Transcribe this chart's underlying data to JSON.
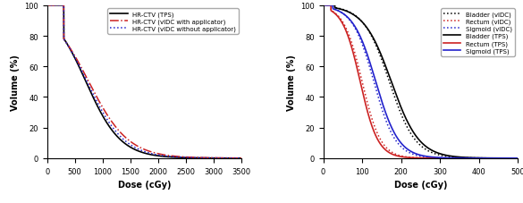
{
  "left": {
    "xlabel": "Dose (cGy)",
    "ylabel": "Volume (%)",
    "xlim": [
      0,
      3500
    ],
    "ylim": [
      0,
      100
    ],
    "xticks": [
      0,
      500,
      1000,
      1500,
      2000,
      2500,
      3000,
      3500
    ],
    "yticks": [
      0,
      20,
      40,
      60,
      80,
      100
    ],
    "curves": [
      {
        "label": "HR-CTV (TPS)",
        "color": "#000000",
        "linestyle": "solid",
        "linewidth": 1.2,
        "x0": 700,
        "k": 0.0032,
        "plateau_end": 300
      },
      {
        "label": "HR-CTV (vIDC with applicator)",
        "color": "#cc2222",
        "linestyle": "dashdot",
        "linewidth": 1.1,
        "x0": 750,
        "k": 0.0028,
        "plateau_end": 300
      },
      {
        "label": "HR-CTV (vIDC without applicator)",
        "color": "#2222cc",
        "linestyle": "dotted",
        "linewidth": 1.1,
        "x0": 720,
        "k": 0.003,
        "plateau_end": 300
      }
    ]
  },
  "right": {
    "xlabel": "Dose (cGy)",
    "ylabel": "Volume (%)",
    "xlim": [
      0,
      500
    ],
    "ylim": [
      0,
      100
    ],
    "xticks": [
      0,
      100,
      200,
      300,
      400,
      500
    ],
    "yticks": [
      0,
      20,
      40,
      60,
      80,
      100
    ],
    "curves": [
      {
        "label": "Bladder (vIDC)",
        "color": "#000000",
        "linestyle": "dotted",
        "linewidth": 1.1,
        "x0": 170,
        "k": 0.03,
        "plateau_end": 30
      },
      {
        "label": "Rectum (vIDC)",
        "color": "#cc2222",
        "linestyle": "dotted",
        "linewidth": 1.1,
        "x0": 100,
        "k": 0.042,
        "plateau_end": 20
      },
      {
        "label": "Sigmoid (vIDC)",
        "color": "#2222cc",
        "linestyle": "dotted",
        "linewidth": 1.1,
        "x0": 130,
        "k": 0.036,
        "plateau_end": 25
      },
      {
        "label": "Bladder (TPS)",
        "color": "#000000",
        "linestyle": "solid",
        "linewidth": 1.2,
        "x0": 175,
        "k": 0.028,
        "plateau_end": 30
      },
      {
        "label": "Rectum (TPS)",
        "color": "#cc2222",
        "linestyle": "solid",
        "linewidth": 1.2,
        "x0": 95,
        "k": 0.044,
        "plateau_end": 20
      },
      {
        "label": "Sigmoid (TPS)",
        "color": "#2222cc",
        "linestyle": "solid",
        "linewidth": 1.2,
        "x0": 135,
        "k": 0.034,
        "plateau_end": 25
      }
    ]
  },
  "legend_fontsize": 5.0,
  "tick_fontsize": 6.0,
  "label_fontsize": 7.0
}
